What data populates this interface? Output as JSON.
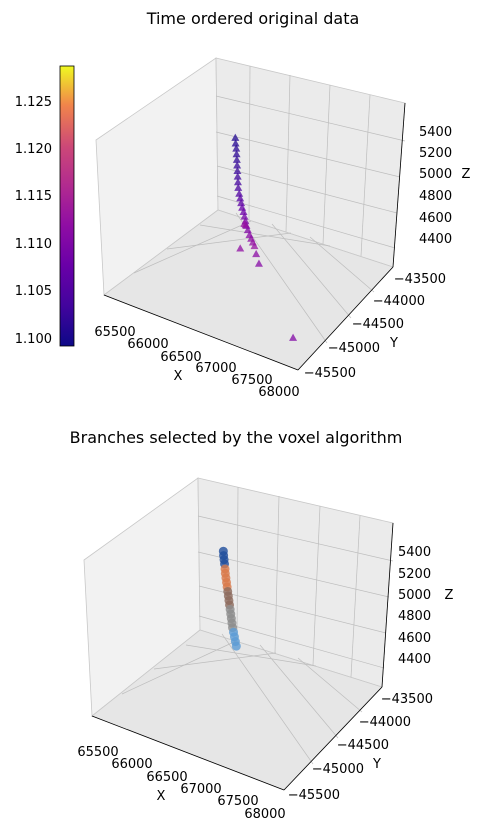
{
  "chart_data": [
    {
      "type": "scatter",
      "projection": "3d",
      "title": "Time ordered original data",
      "xlabel": "X",
      "ylabel": "Y",
      "zlabel": "Z",
      "x_ticks": [
        "65500",
        "66000",
        "66500",
        "67000",
        "67500",
        "68000"
      ],
      "y_ticks": [
        "−43500",
        "−44000",
        "−44500",
        "−45000",
        "−45500"
      ],
      "z_ticks": [
        "4400",
        "4600",
        "4800",
        "5000",
        "5200",
        "5400"
      ],
      "xlim": [
        65300,
        68100
      ],
      "ylim": [
        -45600,
        -43300
      ],
      "zlim": [
        4300,
        5550
      ],
      "grid": true,
      "marker": "triangle",
      "colormap": "plasma",
      "colorbar": {
        "ticks": [
          "1.100",
          "1.105",
          "1.110",
          "1.115",
          "1.120",
          "1.125"
        ],
        "range": [
          1.099,
          1.1285
        ],
        "placement": "left"
      },
      "series": [
        {
          "points": [
            [
              66450,
              -44350,
              5380,
              1.1005
            ],
            [
              66460,
              -44360,
              5340,
              1.1008
            ],
            [
              66470,
              -44360,
              5300,
              1.1012
            ],
            [
              66480,
              -44370,
              5260,
              1.1015
            ],
            [
              66490,
              -44380,
              5220,
              1.1018
            ],
            [
              66500,
              -44390,
              5180,
              1.1022
            ],
            [
              66510,
              -44400,
              5140,
              1.1026
            ],
            [
              66520,
              -44410,
              5100,
              1.103
            ],
            [
              66530,
              -44420,
              5060,
              1.1035
            ],
            [
              66540,
              -44430,
              5020,
              1.104
            ],
            [
              66560,
              -44440,
              4980,
              1.1048
            ],
            [
              66580,
              -44450,
              4950,
              1.1055
            ],
            [
              66600,
              -44460,
              4920,
              1.1062
            ],
            [
              66620,
              -44470,
              4890,
              1.107
            ],
            [
              66640,
              -44470,
              4860,
              1.1078
            ],
            [
              66660,
              -44480,
              4830,
              1.1085
            ],
            [
              66680,
              -44490,
              4800,
              1.1092
            ],
            [
              66700,
              -44500,
              4770,
              1.1098
            ],
            [
              66720,
              -44500,
              4740,
              1.1104
            ],
            [
              66750,
              -44510,
              4710,
              1.111
            ],
            [
              66780,
              -44520,
              4690,
              1.1116
            ],
            [
              66810,
              -44530,
              4670,
              1.1122
            ],
            [
              66840,
              -44540,
              4650,
              1.1126
            ],
            [
              66600,
              -44350,
              4700,
              1.112
            ],
            [
              66550,
              -44300,
              4680,
              1.1124
            ],
            [
              66700,
              -44650,
              4640,
              1.1118
            ],
            [
              66900,
              -44600,
              4620,
              1.1112
            ],
            [
              67000,
              -44700,
              4600,
              1.1106
            ],
            [
              67850,
              -45300,
              4400,
              1.1102
            ]
          ]
        }
      ]
    },
    {
      "type": "scatter",
      "projection": "3d",
      "title": "Branches selected by the voxel algorithm",
      "xlabel": "X",
      "ylabel": "Y",
      "zlabel": "Z",
      "x_ticks": [
        "65500",
        "66000",
        "66500",
        "67000",
        "67500",
        "68000"
      ],
      "y_ticks": [
        "−43500",
        "−44000",
        "−44500",
        "−45000",
        "−45500"
      ],
      "z_ticks": [
        "4400",
        "4600",
        "4800",
        "5000",
        "5200",
        "5400"
      ],
      "xlim": [
        65300,
        68100
      ],
      "ylim": [
        -45600,
        -43300
      ],
      "zlim": [
        4300,
        5550
      ],
      "grid": true,
      "marker": "circle",
      "series": [
        {
          "color": "#1f4e9c",
          "points": [
            [
              66420,
              -44320,
              5420
            ],
            [
              66430,
              -44330,
              5390
            ],
            [
              66440,
              -44335,
              5360
            ],
            [
              66450,
              -44340,
              5330
            ]
          ]
        },
        {
          "color": "#d9794a",
          "points": [
            [
              66470,
              -44360,
              5300
            ],
            [
              66480,
              -44370,
              5270
            ],
            [
              66495,
              -44380,
              5240
            ],
            [
              66510,
              -44390,
              5210
            ],
            [
              66525,
              -44400,
              5180
            ]
          ]
        },
        {
          "color": "#8c6a5c",
          "points": [
            [
              66540,
              -44410,
              5150
            ],
            [
              66555,
              -44420,
              5120
            ],
            [
              66570,
              -44430,
              5090
            ],
            [
              66585,
              -44440,
              5060
            ]
          ]
        },
        {
          "color": "#8c8c8c",
          "points": [
            [
              66600,
              -44450,
              5030
            ],
            [
              66615,
              -44460,
              5000
            ],
            [
              66630,
              -44470,
              4970
            ],
            [
              66645,
              -44480,
              4940
            ],
            [
              66660,
              -44490,
              4910
            ]
          ]
        },
        {
          "color": "#5b9bd5",
          "points": [
            [
              66680,
              -44500,
              4880
            ],
            [
              66700,
              -44510,
              4850
            ],
            [
              66720,
              -44520,
              4820
            ],
            [
              66740,
              -44530,
              4790
            ]
          ]
        }
      ]
    }
  ]
}
